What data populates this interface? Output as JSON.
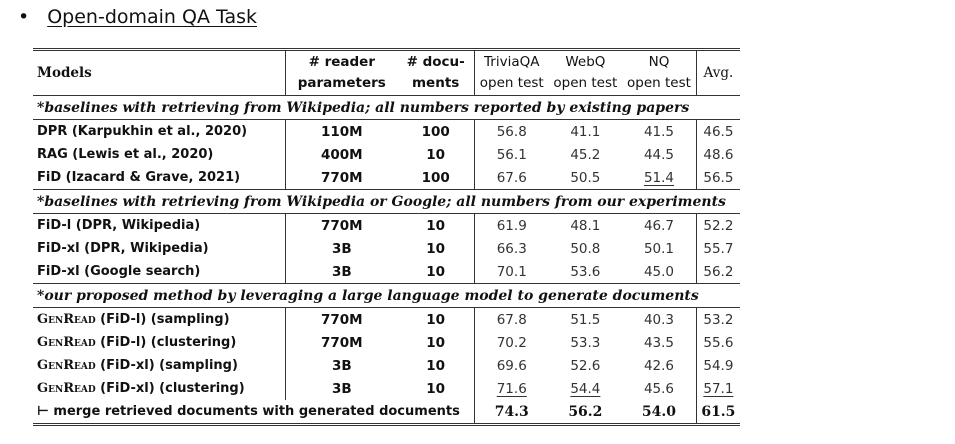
{
  "bullet": {
    "title": "Open-domain QA Task"
  },
  "table": {
    "header": {
      "models": "Models",
      "reader": [
        "# reader",
        "parameters"
      ],
      "docs": [
        "# docu-",
        "ments"
      ],
      "triviaqa": [
        "TriviaQA",
        "open test"
      ],
      "webq": [
        "WebQ",
        "open test"
      ],
      "nq": [
        "NQ",
        "open test"
      ],
      "avg": "Avg."
    },
    "sections": [
      {
        "title": "*baselines with retrieving from Wikipedia; all numbers reported by existing papers",
        "rows": [
          {
            "model": "DPR (Karpukhin et al., 2020)",
            "cells": [
              "110M",
              "100",
              "56.8",
              "41.1",
              "41.5",
              "46.5"
            ]
          },
          {
            "model": "RAG (Lewis et al., 2020)",
            "cells": [
              "400M",
              "10",
              "56.1",
              "45.2",
              "44.5",
              "48.6"
            ]
          },
          {
            "model": "FiD (Izacard & Grave, 2021)",
            "cells": [
              "770M",
              "100",
              "67.6",
              "50.5",
              "51.4",
              "56.5"
            ]
          }
        ]
      },
      {
        "title": "*baselines with retrieving from Wikipedia or Google; all numbers from our experiments",
        "rows": [
          {
            "model": "FiD-l (DPR, Wikipedia)",
            "cells": [
              "770M",
              "10",
              "61.9",
              "48.1",
              "46.7",
              "52.2"
            ]
          },
          {
            "model": "FiD-xl (DPR, Wikipedia)",
            "cells": [
              "3B",
              "10",
              "66.3",
              "50.8",
              "50.1",
              "55.7"
            ]
          },
          {
            "model": "FiD-xl (Google search)",
            "cells": [
              "3B",
              "10",
              "70.1",
              "53.6",
              "45.0",
              "56.2"
            ]
          }
        ]
      },
      {
        "title": "*our proposed method by leveraging a large language model to generate documents",
        "rows": [
          {
            "method": "GenRead",
            "model": "(FiD-l) (sampling)",
            "cells": [
              "770M",
              "10",
              "67.8",
              "51.5",
              "40.3",
              "53.2"
            ]
          },
          {
            "method": "GenRead",
            "model": "(FiD-l) (clustering)",
            "cells": [
              "770M",
              "10",
              "70.2",
              "53.3",
              "43.5",
              "55.6"
            ]
          },
          {
            "method": "GenRead",
            "model": "(FiD-xl) (sampling)",
            "cells": [
              "3B",
              "10",
              "69.6",
              "52.6",
              "42.6",
              "54.9"
            ]
          },
          {
            "method": "GenRead",
            "model": "(FiD-xl) (clustering)",
            "cells": [
              "3B",
              "10",
              "71.6",
              "54.4",
              "45.6",
              "57.1"
            ]
          }
        ],
        "merge": {
          "model": "⊢  merge retrieved documents with generated documents",
          "cells": [
            "74.3",
            "56.2",
            "54.0",
            "61.5"
          ]
        }
      }
    ]
  }
}
